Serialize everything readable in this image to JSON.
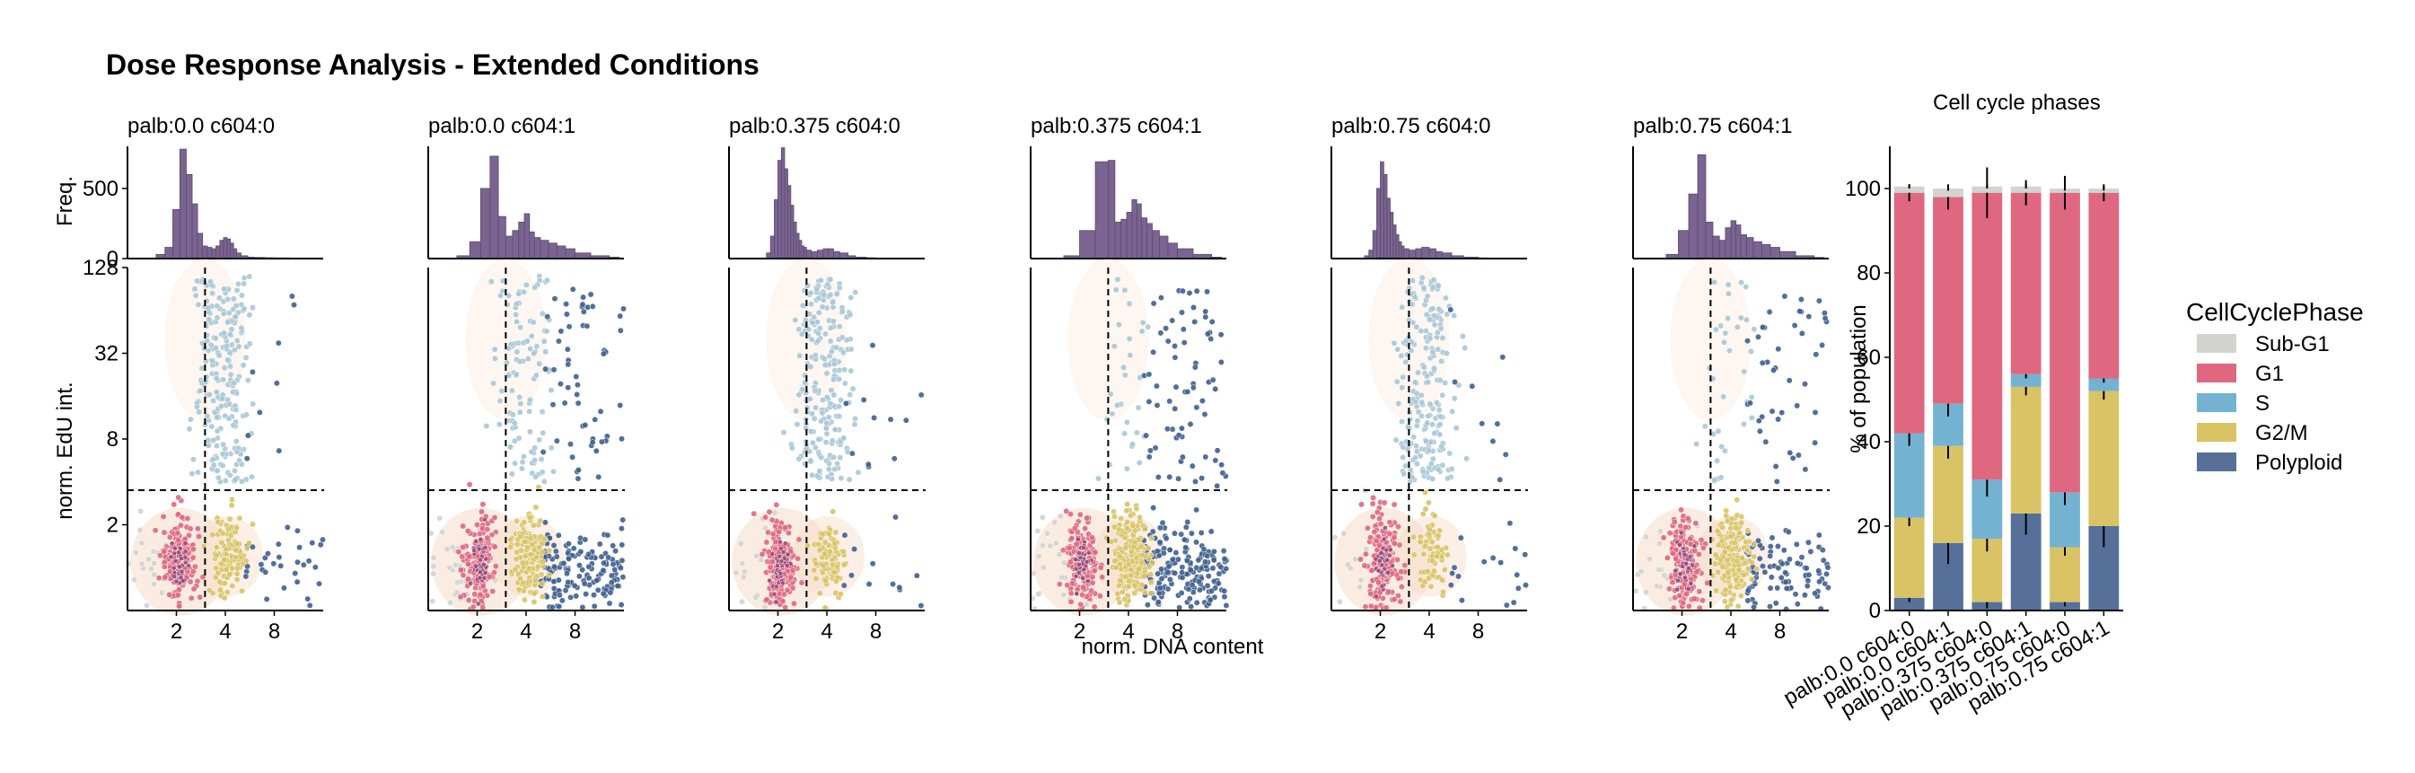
{
  "figure": {
    "title": "Dose Response Analysis - Extended Conditions",
    "freq_label": "Freq.",
    "edu_label": "norm. EdU int.",
    "dna_label": "norm. DNA content"
  },
  "colors": {
    "hist": "#7b6491",
    "sub_g1": "#d3d3d0",
    "g1": "#df6880",
    "s": "#74b2d2",
    "g2m": "#d9c365",
    "polyploid": "#56709a",
    "s_points": "#a9c8d6",
    "polyploid_points": "#3f5f8f",
    "density": "#f6dcc8"
  },
  "panels": [
    {
      "condition": "palb:0.0 c604:0",
      "g1_ticks": [
        "2",
        "4",
        "8"
      ],
      "y_ticks": [
        "2",
        "8",
        "32",
        "128"
      ],
      "freq_ticks": [
        "0",
        "500"
      ]
    },
    {
      "condition": "palb:0.0 c604:1"
    },
    {
      "condition": "palb:0.375 c604:0"
    },
    {
      "condition": "palb:0.375 c604:1"
    },
    {
      "condition": "palb:0.75 c604:0"
    },
    {
      "condition": "palb:0.75 c604:1"
    }
  ],
  "chart_data": [
    {
      "type": "scatter",
      "title": "",
      "panels": [
        "palb:0.0 c604:0",
        "palb:0.0 c604:1",
        "palb:0.375 c604:0",
        "palb:0.375 c604:1",
        "palb:0.75 c604:0",
        "palb:0.75 c604:1"
      ],
      "xlabel": "norm. DNA content",
      "ylabel": "norm. EdU int.",
      "x_scale": "log2",
      "y_scale": "log2",
      "x_ticks": [
        2,
        4,
        8
      ],
      "y_ticks": [
        2,
        8,
        32,
        128
      ],
      "xlim": [
        1,
        16
      ],
      "ylim": [
        0.5,
        128
      ],
      "gate_dna": 3,
      "gate_edu": 3.5,
      "histogram_ylabel": "Freq.",
      "histogram_yticks": [
        0,
        500
      ],
      "histogram_ylim": [
        0,
        800
      ],
      "histograms": [
        {
          "bins_x": [
            1.5,
            1.7,
            1.9,
            2.1,
            2.3,
            2.5,
            2.7,
            2.9,
            3.1,
            3.3,
            3.5,
            3.7,
            3.9,
            4.1,
            4.3,
            4.5,
            4.7,
            5.0,
            5.5,
            6,
            7,
            8,
            10,
            13
          ],
          "counts": [
            30,
            80,
            350,
            780,
            600,
            390,
            180,
            90,
            80,
            70,
            90,
            130,
            150,
            140,
            110,
            70,
            40,
            20,
            10,
            8,
            6,
            5,
            3,
            2
          ]
        },
        {
          "bins_x": [
            1.5,
            1.8,
            2.1,
            2.4,
            2.7,
            3.0,
            3.3,
            3.6,
            3.9,
            4.2,
            4.5,
            4.9,
            5.5,
            6.2,
            7,
            8,
            10,
            13
          ],
          "counts": [
            20,
            120,
            500,
            730,
            300,
            160,
            200,
            260,
            320,
            190,
            150,
            130,
            110,
            90,
            70,
            40,
            20,
            10
          ]
        },
        {
          "bins_x": [
            1.7,
            1.8,
            1.9,
            2.0,
            2.1,
            2.2,
            2.3,
            2.4,
            2.5,
            2.6,
            2.7,
            2.8,
            2.9,
            3.0,
            3.2,
            3.5,
            3.8,
            4.1,
            4.4,
            4.8,
            5.4,
            6,
            7,
            8
          ],
          "counts": [
            40,
            160,
            420,
            700,
            790,
            640,
            520,
            380,
            260,
            180,
            130,
            90,
            80,
            60,
            50,
            60,
            70,
            70,
            50,
            40,
            20,
            10,
            6,
            3
          ]
        },
        {
          "bins_x": [
            1.6,
            2.0,
            2.5,
            3.0,
            3.3,
            3.6,
            3.9,
            4.2,
            4.5,
            4.8,
            5.2,
            5.6,
            6.2,
            7,
            8,
            10,
            13
          ],
          "counts": [
            20,
            200,
            690,
            700,
            260,
            280,
            330,
            420,
            390,
            290,
            250,
            200,
            160,
            110,
            70,
            30,
            10
          ]
        },
        {
          "bins_x": [
            1.6,
            1.7,
            1.8,
            1.9,
            2.0,
            2.1,
            2.2,
            2.3,
            2.4,
            2.5,
            2.6,
            2.7,
            2.8,
            3.0,
            3.3,
            3.6,
            4.0,
            4.4,
            4.8,
            5.5,
            6.5,
            8
          ],
          "counts": [
            20,
            60,
            200,
            500,
            690,
            600,
            430,
            330,
            240,
            170,
            120,
            90,
            70,
            60,
            70,
            80,
            70,
            50,
            40,
            20,
            10,
            5
          ]
        },
        {
          "bins_x": [
            1.6,
            1.9,
            2.2,
            2.5,
            2.8,
            3.1,
            3.4,
            3.7,
            4.0,
            4.3,
            4.6,
            5.0,
            5.5,
            6.2,
            7,
            8,
            10,
            13
          ],
          "counts": [
            30,
            200,
            460,
            740,
            260,
            160,
            130,
            220,
            270,
            240,
            170,
            150,
            120,
            100,
            80,
            50,
            20,
            8
          ]
        }
      ],
      "series": [
        {
          "name": "Sub-G1"
        },
        {
          "name": "G1"
        },
        {
          "name": "S"
        },
        {
          "name": "G2/M"
        },
        {
          "name": "Polyploid"
        }
      ]
    },
    {
      "type": "bar",
      "stacked": true,
      "title": "Cell cycle phases",
      "categories": [
        "palb:0.0 c604:0",
        "palb:0.0 c604:1",
        "palb:0.375 c604:0",
        "palb:0.375 c604:1",
        "palb:0.75 c604:0",
        "palb:0.75 c604:1"
      ],
      "xlabel": "",
      "ylabel": "% of population",
      "ylim": [
        0,
        110
      ],
      "y_ticks": [
        0,
        20,
        40,
        60,
        80,
        100
      ],
      "legend_title": "CellCyclePhase",
      "legend_placement": "right",
      "series": [
        {
          "name": "Polyploid",
          "values": [
            3,
            16,
            2,
            23,
            2,
            20
          ],
          "err": [
            1,
            5,
            1.5,
            5,
            1,
            5
          ]
        },
        {
          "name": "G2/M",
          "values": [
            19,
            23,
            15,
            30,
            13,
            32
          ],
          "err": [
            2,
            3,
            3,
            2,
            2,
            2
          ]
        },
        {
          "name": "S",
          "values": [
            20,
            10,
            14,
            3,
            13,
            3
          ],
          "err": [
            3,
            3,
            4,
            1,
            3,
            1
          ]
        },
        {
          "name": "G1",
          "values": [
            57,
            49,
            68,
            43,
            71,
            44
          ],
          "err": [
            2,
            3,
            6,
            3,
            4,
            2
          ]
        },
        {
          "name": "Sub-G1",
          "values": [
            1.5,
            2,
            1.5,
            1.5,
            1,
            1
          ],
          "err": [
            0.5,
            0.5,
            0.5,
            0.5,
            0.5,
            0.5
          ]
        }
      ]
    }
  ],
  "legend": {
    "title": "CellCyclePhase",
    "items": [
      "Sub-G1",
      "G1",
      "S",
      "G2/M",
      "Polyploid"
    ]
  }
}
